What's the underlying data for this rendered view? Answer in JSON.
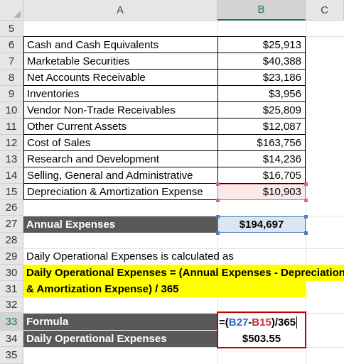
{
  "columns": [
    "A",
    "B",
    "C"
  ],
  "rows": {
    "r5": "5",
    "r6": "6",
    "r7": "7",
    "r8": "8",
    "r9": "9",
    "r10": "10",
    "r11": "11",
    "r12": "12",
    "r13": "13",
    "r14": "14",
    "r15": "15",
    "r26": "26",
    "r27": "27",
    "r28": "28",
    "r29": "29",
    "r30": "30",
    "r31": "31",
    "r32": "32",
    "r33": "33",
    "r34": "34",
    "r35": "35"
  },
  "table": [
    {
      "label": "Cash and Cash Equivalents",
      "value": "$25,913"
    },
    {
      "label": "Marketable Securities",
      "value": "$40,388"
    },
    {
      "label": "Net Accounts Receivable",
      "value": "$23,186"
    },
    {
      "label": "Inventories",
      "value": "$3,956"
    },
    {
      "label": "Vendor Non-Trade Receivables",
      "value": "$25,809"
    },
    {
      "label": "Other Current Assets",
      "value": "$12,087"
    },
    {
      "label": "Cost of Sales",
      "value": "$163,756"
    },
    {
      "label": "Research and Development",
      "value": "$14,236"
    },
    {
      "label": "Selling, General and Administrative",
      "value": "$16,705"
    },
    {
      "label": "Depreciation & Amortization Expense",
      "value": "$10,903"
    }
  ],
  "annual": {
    "label": "Annual Expenses",
    "value": "$194,697"
  },
  "note": "Daily Operational Expenses  is calculated as",
  "formula_text": {
    "line1": "Daily Operational Expenses = (Annual Expenses - Depreciation",
    "line2": "& Amortization Expense) / 365"
  },
  "formula_row": {
    "label": "Formula",
    "parts": {
      "open": "=(",
      "ref1": "B27",
      "minus": "-",
      "ref2": "B15",
      "close": ")/365"
    }
  },
  "result_row": {
    "label": "Daily Operational Expenses",
    "value": "$503.55"
  },
  "colors": {
    "header_fill": "#595959",
    "highlight": "#ffff00",
    "ref_blue": "#2f65c8",
    "ref_red": "#c0303a",
    "box_red": "#c00000"
  }
}
